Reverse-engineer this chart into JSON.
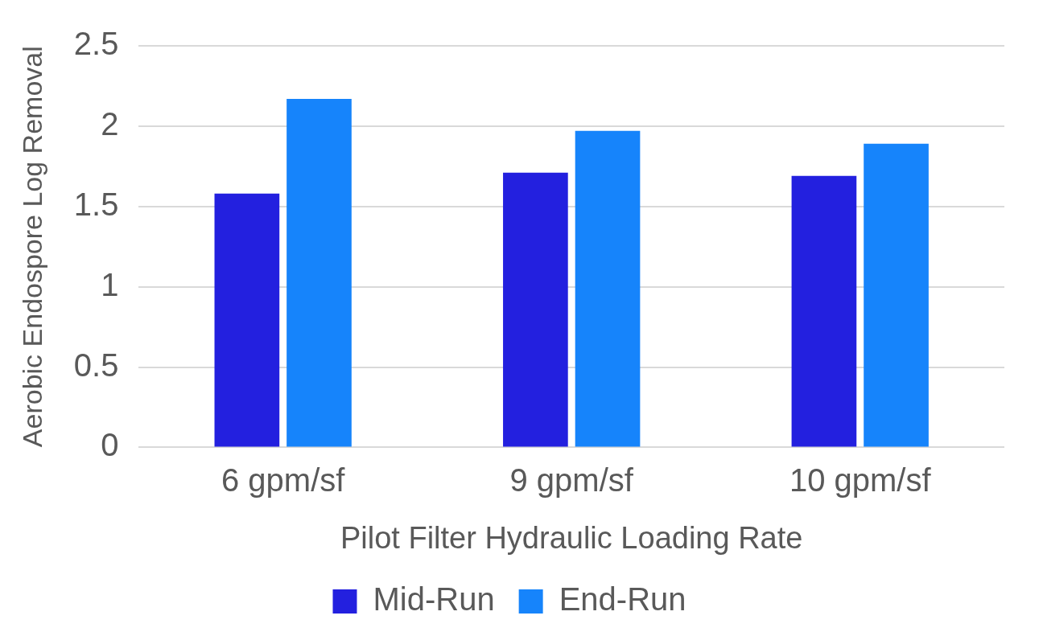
{
  "chart_data": {
    "type": "bar",
    "xlabel": "Pilot Filter Hydraulic Loading Rate",
    "ylabel": "Aerobic Endospore Log Removal",
    "categories": [
      "6 gpm/sf",
      "9 gpm/sf",
      "10 gpm/sf"
    ],
    "series": [
      {
        "name": "Mid-Run",
        "color": "#2320df",
        "values": [
          1.58,
          1.71,
          1.69
        ]
      },
      {
        "name": "End-Run",
        "color": "#1684fb",
        "values": [
          2.17,
          1.97,
          1.89
        ]
      }
    ],
    "ylim": [
      0,
      2.5
    ],
    "yticks": [
      0,
      0.5,
      1,
      1.5,
      2,
      2.5
    ],
    "grid": "y",
    "legend": "bottom"
  }
}
